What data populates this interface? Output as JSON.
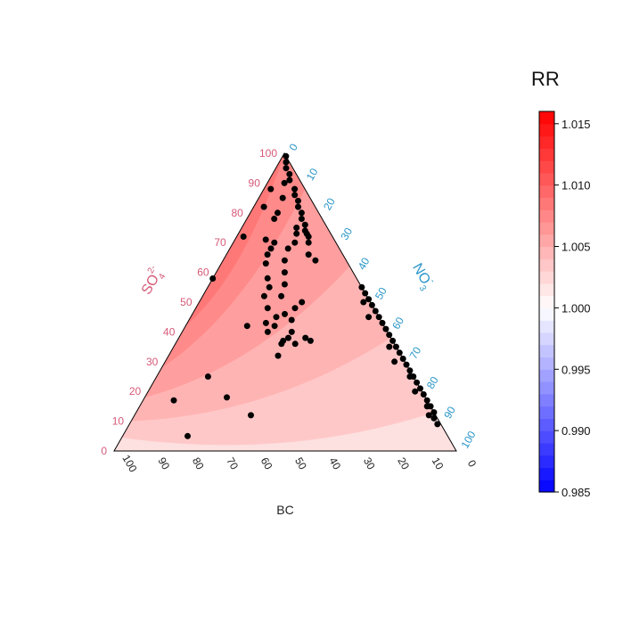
{
  "chart_data": {
    "type": "ternary-contour",
    "axes": {
      "left": {
        "label_main": "SO",
        "label_sup": "2-",
        "label_sub": "4",
        "ticks": [
          "0",
          "10",
          "20",
          "30",
          "40",
          "50",
          "60",
          "70",
          "80",
          "90",
          "100"
        ],
        "color": "#d65a78"
      },
      "right": {
        "label_main": "NO",
        "label_sup": "-",
        "label_sub": "3",
        "ticks": [
          "0",
          "10",
          "20",
          "30",
          "40",
          "50",
          "60",
          "70",
          "80",
          "90",
          "100"
        ],
        "color": "#2a96c8"
      },
      "bottom": {
        "label": "BC",
        "ticks": [
          "100",
          "90",
          "80",
          "70",
          "60",
          "50",
          "40",
          "30",
          "20",
          "10",
          "0"
        ],
        "color": "#222222"
      }
    },
    "colorbar": {
      "title": "RR",
      "ticks": [
        "1.015",
        "1.010",
        "1.005",
        "1.000",
        "0.995",
        "0.990",
        "0.985"
      ],
      "range": [
        0.985,
        1.016
      ],
      "low_color": "#0000ff",
      "mid_color": "#ffffff",
      "high_color": "#ff0000"
    },
    "surface_bands": [
      {
        "rr": 1.002,
        "color": "#fde0e0"
      },
      {
        "rr": 1.004,
        "color": "#ffc8c8"
      },
      {
        "rr": 1.0055,
        "color": "#ffb4b4"
      },
      {
        "rr": 1.007,
        "color": "#ff9e9e"
      },
      {
        "rr": 1.0085,
        "color": "#ff8a8a"
      },
      {
        "rr": 1.0095,
        "color": "#ff7878"
      }
    ],
    "points_bc_so4_no3": [
      [
        0,
        99,
        1
      ],
      [
        1,
        97,
        2
      ],
      [
        2,
        95,
        3
      ],
      [
        2,
        93,
        5
      ],
      [
        3,
        91,
        6
      ],
      [
        3,
        88,
        9
      ],
      [
        4,
        86,
        10
      ],
      [
        4,
        84,
        12
      ],
      [
        5,
        82,
        13
      ],
      [
        5,
        80,
        15
      ],
      [
        6,
        78,
        16
      ],
      [
        6,
        76,
        18
      ],
      [
        7,
        74,
        19
      ],
      [
        7,
        72,
        21
      ],
      [
        8,
        70,
        22
      ],
      [
        7,
        73,
        20
      ],
      [
        9,
        75,
        16
      ],
      [
        10,
        73,
        17
      ],
      [
        12,
        70,
        18
      ],
      [
        15,
        68,
        17
      ],
      [
        18,
        70,
        12
      ],
      [
        12,
        80,
        8
      ],
      [
        8,
        85,
        7
      ],
      [
        5,
        90,
        5
      ],
      [
        10,
        88,
        2
      ],
      [
        15,
        82,
        3
      ],
      [
        14,
        78,
        8
      ],
      [
        10,
        66,
        24
      ],
      [
        9,
        64,
        27
      ],
      [
        20,
        60,
        20
      ],
      [
        22,
        56,
        22
      ],
      [
        25,
        52,
        23
      ],
      [
        23,
        48,
        29
      ],
      [
        20,
        50,
        30
      ],
      [
        27,
        46,
        27
      ],
      [
        30,
        45,
        25
      ],
      [
        28,
        40,
        32
      ],
      [
        25,
        38,
        37
      ],
      [
        30,
        38,
        32
      ],
      [
        33,
        36,
        31
      ],
      [
        35,
        40,
        25
      ],
      [
        32,
        42,
        26
      ],
      [
        27,
        55,
        18
      ],
      [
        26,
        58,
        16
      ],
      [
        30,
        52,
        18
      ],
      [
        24,
        63,
        13
      ],
      [
        22,
        66,
        12
      ],
      [
        20,
        71,
        9
      ],
      [
        26,
        72,
        2
      ],
      [
        20,
        68,
        12
      ],
      [
        18,
        64,
        18
      ],
      [
        31,
        48,
        21
      ],
      [
        34,
        43,
        23
      ],
      [
        26,
        44,
        30
      ],
      [
        29,
        36,
        35
      ],
      [
        24,
        37,
        39
      ],
      [
        32,
        37,
        31
      ],
      [
        36,
        32,
        32
      ],
      [
        40,
        42,
        18
      ],
      [
        45,
        62,
        -7
      ],
      [
        60,
        25,
        15
      ],
      [
        58,
        18,
        24
      ],
      [
        74,
        17,
        9
      ],
      [
        76,
        5,
        19
      ],
      [
        54,
        12,
        34
      ],
      [
        0,
        55,
        45
      ],
      [
        0,
        53,
        47
      ],
      [
        0,
        51,
        49
      ],
      [
        0,
        49,
        51
      ],
      [
        0,
        47,
        53
      ],
      [
        0,
        45,
        55
      ],
      [
        0,
        43,
        57
      ],
      [
        0,
        41,
        59
      ],
      [
        0,
        39,
        61
      ],
      [
        0,
        37,
        63
      ],
      [
        0,
        35,
        65
      ],
      [
        0,
        33,
        67
      ],
      [
        0,
        31,
        69
      ],
      [
        0,
        29,
        71
      ],
      [
        0,
        27,
        73
      ],
      [
        0,
        25,
        75
      ],
      [
        0,
        23,
        77
      ],
      [
        0,
        21,
        79
      ],
      [
        0,
        19,
        81
      ],
      [
        0,
        17,
        83
      ],
      [
        0,
        15,
        85
      ],
      [
        0,
        13,
        87
      ],
      [
        1,
        11,
        88
      ],
      [
        1,
        9,
        90
      ],
      [
        2,
        35,
        63
      ],
      [
        3,
        30,
        67
      ],
      [
        1,
        25,
        74
      ],
      [
        2,
        20,
        78
      ],
      [
        1,
        15,
        84
      ],
      [
        2,
        12,
        86
      ],
      [
        3,
        45,
        52
      ],
      [
        2,
        50,
        48
      ]
    ]
  }
}
